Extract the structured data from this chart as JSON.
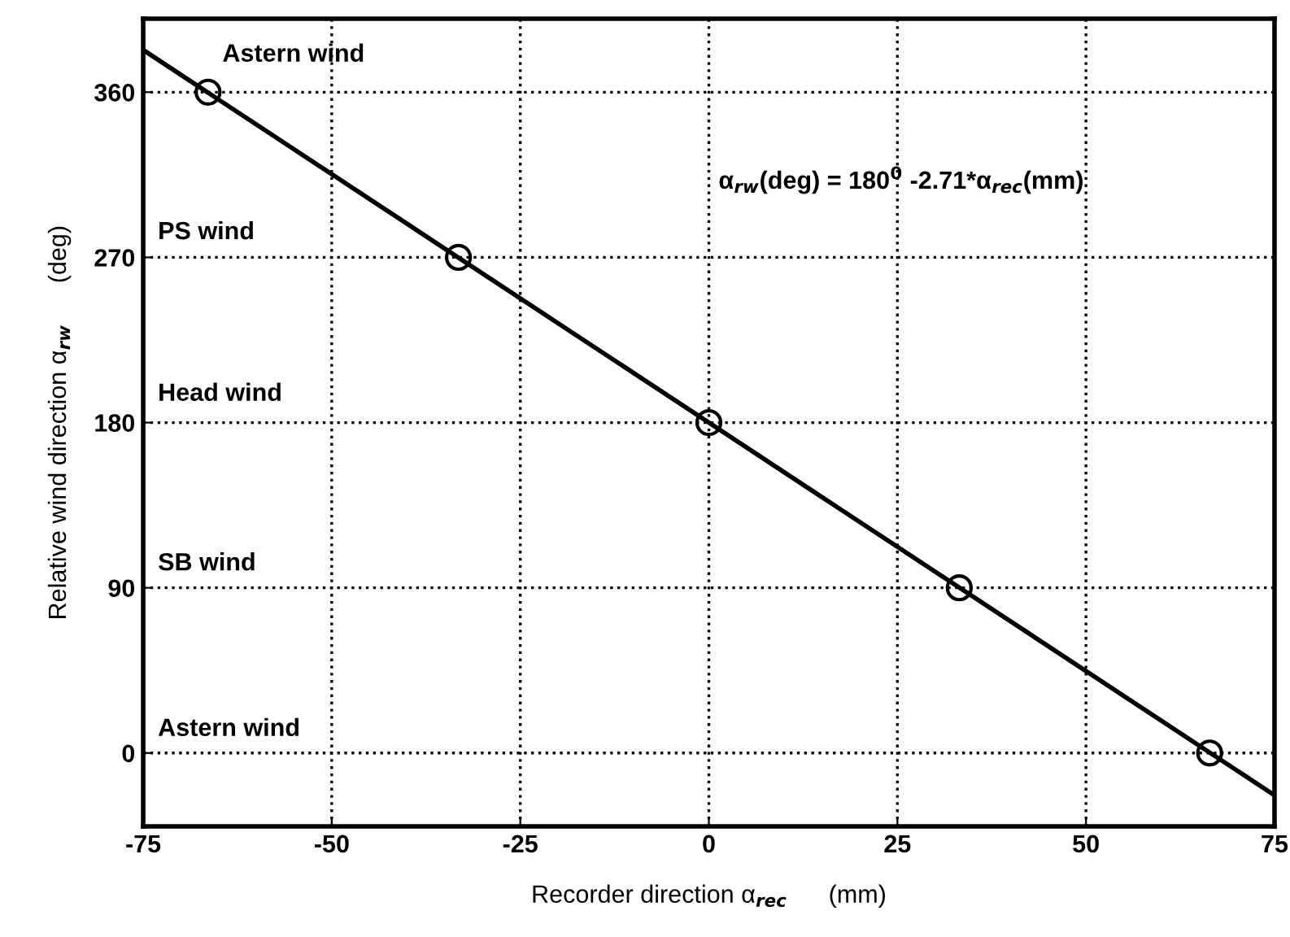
{
  "chart_data": {
    "type": "line",
    "xlabel": "Recorder direction α$_{rec}$      (mm)",
    "ylabel": "Relative wind direction α$_{rw}$      (deg)",
    "xlim": [
      -75,
      75
    ],
    "ylim": [
      -40,
      400
    ],
    "xticks": [
      -75,
      -50,
      -25,
      0,
      25,
      50,
      75
    ],
    "yticks": [
      0,
      90,
      180,
      270,
      360
    ],
    "grid": true,
    "line_style": "solid",
    "series": [
      {
        "color": "#000000",
        "x": [
          -75,
          75
        ],
        "values": [
          383,
          -23
        ],
        "marker": "none"
      },
      {
        "type": "scatter",
        "color": "#000000",
        "x": [
          -66.4,
          -33.2,
          0,
          33.2,
          66.4
        ],
        "values": [
          360,
          270,
          180,
          90,
          0
        ],
        "marker": "circle"
      }
    ],
    "annotations": [
      "Astern wind",
      "PS wind",
      "Head wind",
      "SB wind",
      "Astern wind",
      "α$_{rw}$(deg) = 180$^{0}$ -2.71*α$_{rec}$(mm)"
    ]
  }
}
